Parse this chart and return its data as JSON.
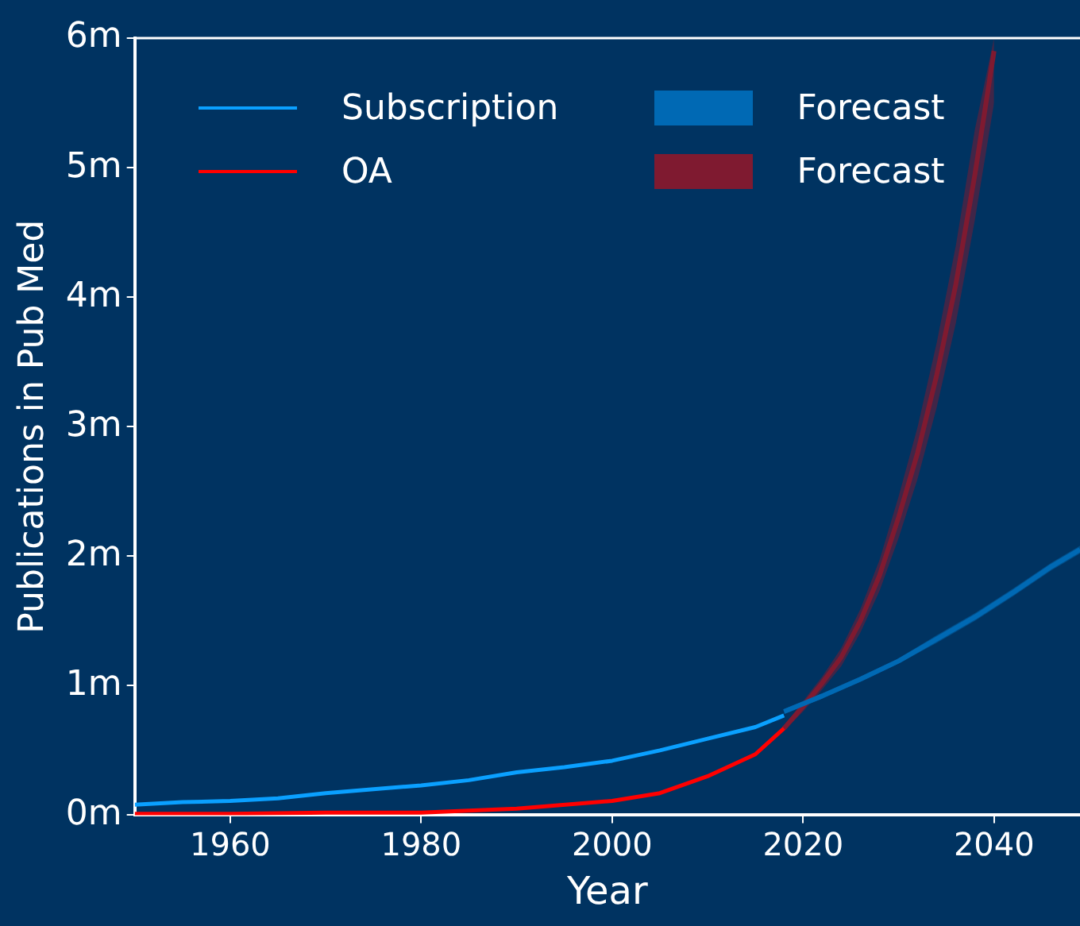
{
  "chart_data": {
    "type": "line",
    "xlabel": "Year",
    "ylabel": "Publications in Pub Med",
    "xlim": [
      1950,
      2049
    ],
    "xticks": [
      1960,
      1980,
      2000,
      2020,
      2040
    ],
    "ylim": [
      0,
      6
    ],
    "yticks": [
      {
        "value": 0,
        "label": "0m"
      },
      {
        "value": 1,
        "label": "1m"
      },
      {
        "value": 2,
        "label": "2m"
      },
      {
        "value": 3,
        "label": "3m"
      },
      {
        "value": 4,
        "label": "4m"
      },
      {
        "value": 5,
        "label": "5m"
      },
      {
        "value": 6,
        "label": "6m"
      }
    ],
    "grid": false,
    "legend": "top left",
    "series": [
      {
        "name": "Subscription",
        "color": "#0aa0ff",
        "x": [
          1950,
          1955,
          1960,
          1965,
          1970,
          1975,
          1980,
          1985,
          1990,
          1995,
          2000,
          2005,
          2010,
          2015,
          2018
        ],
        "values": [
          0.08,
          0.1,
          0.11,
          0.13,
          0.17,
          0.2,
          0.23,
          0.27,
          0.33,
          0.37,
          0.42,
          0.5,
          0.59,
          0.68,
          0.77
        ]
      },
      {
        "name": "OA",
        "color": "#ff0000",
        "x": [
          1950,
          1960,
          1970,
          1980,
          1990,
          2000,
          2005,
          2010,
          2015,
          2018
        ],
        "values": [
          0.01,
          0.01,
          0.02,
          0.02,
          0.05,
          0.11,
          0.17,
          0.3,
          0.47,
          0.67
        ]
      },
      {
        "name": "Forecast",
        "color": "#0069b4",
        "x": [
          2018,
          2022,
          2026,
          2030,
          2034,
          2038,
          2042,
          2046,
          2049
        ],
        "values": [
          0.8,
          0.92,
          1.05,
          1.19,
          1.36,
          1.53,
          1.72,
          1.92,
          2.05
        ],
        "lower": [
          0.78,
          0.9,
          1.03,
          1.17,
          1.33,
          1.5,
          1.69,
          1.89,
          2.02
        ],
        "upper": [
          0.82,
          0.94,
          1.07,
          1.21,
          1.39,
          1.56,
          1.75,
          1.95,
          2.08
        ]
      },
      {
        "name": "Forecast",
        "color": "#7f1a30",
        "x": [
          2018,
          2020,
          2022,
          2024,
          2026,
          2028,
          2030,
          2032,
          2034,
          2036,
          2038,
          2040
        ],
        "values": [
          0.67,
          0.84,
          1.02,
          1.22,
          1.5,
          1.85,
          2.3,
          2.8,
          3.4,
          4.1,
          4.95,
          5.9
        ],
        "lower": [
          0.65,
          0.8,
          0.97,
          1.15,
          1.41,
          1.73,
          2.14,
          2.6,
          3.15,
          3.8,
          4.6,
          5.5
        ],
        "upper": [
          0.69,
          0.88,
          1.07,
          1.29,
          1.59,
          1.97,
          2.46,
          3.0,
          3.65,
          4.4,
          5.3,
          6.0
        ]
      }
    ]
  }
}
